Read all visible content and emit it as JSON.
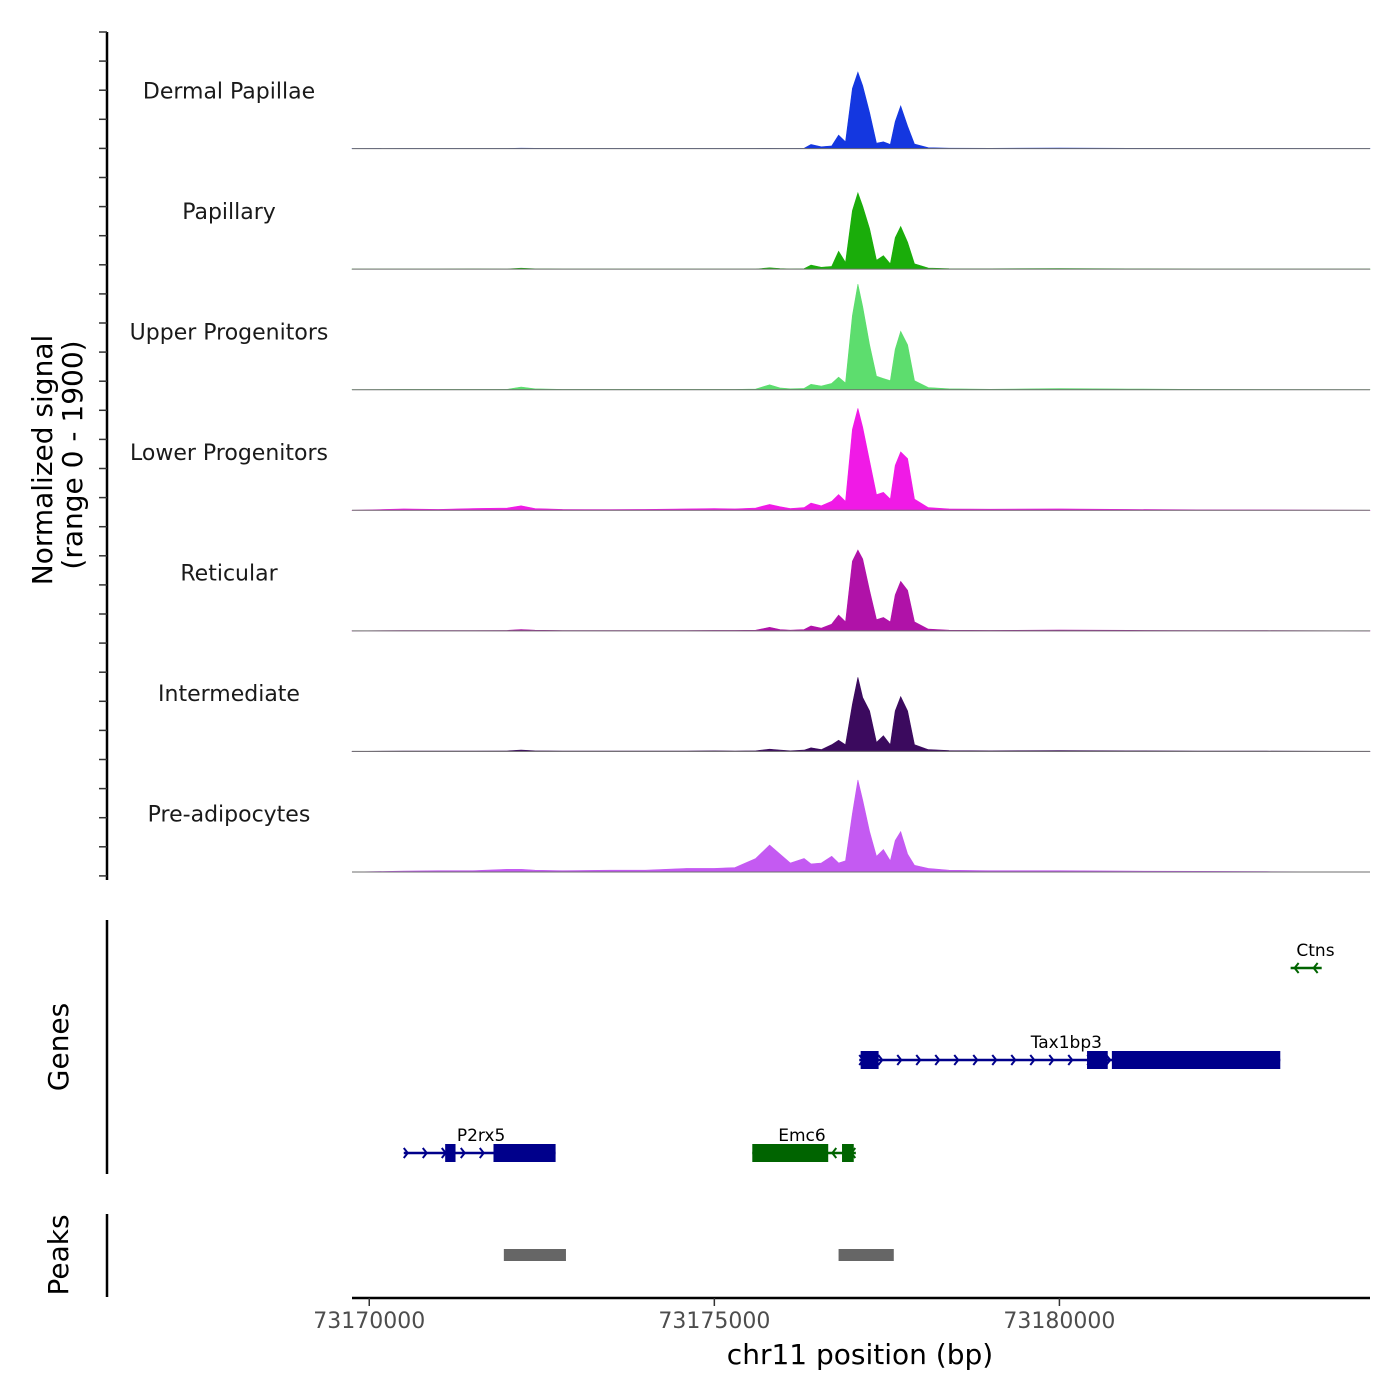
{
  "chart_data": {
    "type": "area",
    "title": "",
    "ylabel_line1": "Normalized signal",
    "ylabel_line2": "(range 0 - 1900)",
    "ylim": [
      0,
      1900
    ],
    "xlabel": "chr11 position (bp)",
    "xlim": [
      73169750,
      73184500
    ],
    "xticks": [
      73170000,
      73175000,
      73180000
    ],
    "x": [
      73169750,
      73170500,
      73171000,
      73171500,
      73172000,
      73172200,
      73172400,
      73172800,
      73173500,
      73174000,
      73174600,
      73175000,
      73175300,
      73175600,
      73175800,
      73175950,
      73176100,
      73176300,
      73176400,
      73176550,
      73176700,
      73176800,
      73176900,
      73177000,
      73177080,
      73177150,
      73177250,
      73177350,
      73177450,
      73177550,
      73177620,
      73177700,
      73177800,
      73177900,
      73178100,
      73178400,
      73179000,
      73180000,
      73181000,
      73182000,
      73183000,
      73184500
    ],
    "series": [
      {
        "name": "Dermal Papillae",
        "color": "#1437e0",
        "values": [
          0,
          3,
          3,
          3,
          4,
          8,
          6,
          4,
          3,
          3,
          3,
          3,
          3,
          3,
          6,
          4,
          3,
          6,
          90,
          40,
          60,
          300,
          150,
          1340,
          1700,
          1400,
          800,
          120,
          150,
          90,
          600,
          950,
          500,
          100,
          20,
          8,
          5,
          10,
          6,
          3,
          3,
          0
        ]
      },
      {
        "name": "Papillary",
        "color": "#1aad0a",
        "values": [
          0,
          4,
          4,
          6,
          4,
          20,
          8,
          4,
          4,
          3,
          4,
          4,
          3,
          3,
          30,
          15,
          6,
          10,
          90,
          40,
          60,
          400,
          150,
          1300,
          1700,
          1400,
          900,
          200,
          300,
          120,
          700,
          950,
          600,
          120,
          25,
          10,
          8,
          14,
          8,
          4,
          3,
          0
        ]
      },
      {
        "name": "Upper Progenitors",
        "color": "#5ddd6e",
        "values": [
          0,
          8,
          6,
          8,
          10,
          60,
          20,
          8,
          6,
          6,
          6,
          8,
          6,
          15,
          110,
          40,
          20,
          30,
          120,
          80,
          140,
          280,
          150,
          1650,
          2350,
          1850,
          1000,
          300,
          250,
          200,
          900,
          1300,
          1000,
          200,
          50,
          20,
          10,
          25,
          15,
          6,
          5,
          0
        ]
      },
      {
        "name": "Lower Progenitors",
        "color": "#f01ae6",
        "values": [
          0,
          30,
          20,
          40,
          50,
          100,
          40,
          20,
          15,
          20,
          30,
          40,
          30,
          50,
          130,
          80,
          40,
          60,
          160,
          100,
          200,
          350,
          200,
          1800,
          2270,
          1850,
          1100,
          350,
          400,
          250,
          1000,
          1300,
          1150,
          250,
          60,
          30,
          25,
          30,
          20,
          10,
          8,
          0
        ]
      },
      {
        "name": "Reticular",
        "color": "#b012a8",
        "values": [
          0,
          8,
          6,
          8,
          10,
          30,
          15,
          8,
          6,
          6,
          8,
          10,
          10,
          15,
          80,
          30,
          15,
          30,
          110,
          60,
          150,
          350,
          200,
          1550,
          1800,
          1600,
          900,
          250,
          300,
          200,
          800,
          1100,
          900,
          200,
          40,
          15,
          10,
          20,
          12,
          6,
          5,
          0
        ]
      },
      {
        "name": "Intermediate",
        "color": "#3b0a5e",
        "values": [
          0,
          10,
          8,
          10,
          12,
          30,
          15,
          8,
          8,
          8,
          10,
          15,
          10,
          15,
          50,
          30,
          15,
          30,
          80,
          40,
          150,
          250,
          150,
          1050,
          1650,
          1200,
          900,
          200,
          350,
          150,
          900,
          1220,
          900,
          150,
          40,
          20,
          15,
          20,
          15,
          10,
          8,
          0
        ]
      },
      {
        "name": "Pre-adipocytes",
        "color": "#c45af2",
        "values": [
          0,
          20,
          30,
          30,
          60,
          60,
          40,
          30,
          40,
          40,
          80,
          80,
          100,
          300,
          600,
          400,
          200,
          300,
          180,
          200,
          350,
          200,
          250,
          1300,
          2050,
          1600,
          900,
          350,
          500,
          250,
          700,
          900,
          400,
          150,
          80,
          40,
          30,
          30,
          20,
          15,
          10,
          0
        ]
      }
    ],
    "genes": [
      {
        "name": "Ctns",
        "strand": "-",
        "color": "#006400",
        "start": 73183350,
        "end": 73183800,
        "exons": [],
        "label_x": 73183710
      },
      {
        "name": "Tax1bp3",
        "strand": "+",
        "color": "#00008b",
        "start": 73177100,
        "end": 73183200,
        "exons": [
          [
            73177120,
            73177380
          ],
          [
            73180400,
            73180700
          ],
          [
            73180760,
            73183200
          ]
        ],
        "label_x": 73180100
      },
      {
        "name": "P2rx5",
        "strand": "+",
        "color": "#00008b",
        "start": 73170500,
        "end": 73172700,
        "exons": [
          [
            73171100,
            73171250
          ],
          [
            73171800,
            73172700
          ]
        ],
        "label_x": 73171620
      },
      {
        "name": "Emc6",
        "strand": "-",
        "color": "#006400",
        "start": 73175550,
        "end": 73177050,
        "exons": [
          [
            73175550,
            73176650
          ],
          [
            73176850,
            73177020
          ]
        ],
        "label_x": 73176270
      }
    ],
    "peaks_label": "Peaks",
    "genes_label": "Genes",
    "peaks": [
      [
        73171950,
        73172850
      ],
      [
        73176800,
        73177600
      ]
    ],
    "peak_color": "#666666"
  }
}
